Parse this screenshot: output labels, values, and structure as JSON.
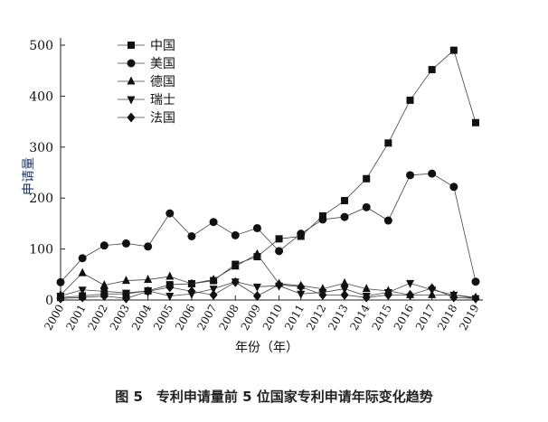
{
  "chart_data": {
    "type": "line",
    "caption": "图 5　专利申请量前 5 位国家专利申请年际变化趋势",
    "xlabel": "年份（年）",
    "ylabel": "申请量",
    "ylim": [
      0,
      500
    ],
    "yticks": [
      0,
      100,
      200,
      300,
      400,
      500
    ],
    "categories": [
      "2000",
      "2001",
      "2002",
      "2003",
      "2004",
      "2005",
      "2006",
      "2007",
      "2008",
      "2009",
      "2010",
      "2011",
      "2012",
      "2013",
      "2014",
      "2015",
      "2016",
      "2017",
      "2018",
      "2019"
    ],
    "legend_position": "top-left",
    "series": [
      {
        "name": "中国",
        "marker": "square",
        "values": [
          5,
          8,
          12,
          12,
          18,
          30,
          32,
          38,
          70,
          85,
          120,
          125,
          165,
          195,
          238,
          308,
          392,
          452,
          490,
          348
        ]
      },
      {
        "name": "美国",
        "marker": "circle",
        "values": [
          35,
          82,
          107,
          111,
          105,
          170,
          125,
          153,
          127,
          141,
          96,
          130,
          158,
          163,
          182,
          156,
          245,
          248,
          222,
          36
        ]
      },
      {
        "name": "德国",
        "marker": "triangle-up",
        "values": [
          10,
          53,
          29,
          38,
          40,
          46,
          32,
          40,
          66,
          90,
          32,
          28,
          22,
          33,
          22,
          18,
          10,
          10,
          10,
          5
        ]
      },
      {
        "name": "瑞士",
        "marker": "triangle-down",
        "values": [
          8,
          20,
          17,
          14,
          18,
          8,
          12,
          22,
          36,
          26,
          28,
          12,
          15,
          22,
          8,
          15,
          33,
          20,
          10,
          3
        ]
      },
      {
        "name": "法国",
        "marker": "diamond",
        "values": [
          3,
          5,
          8,
          3,
          17,
          25,
          17,
          10,
          35,
          8,
          30,
          26,
          10,
          10,
          5,
          10,
          10,
          23,
          5,
          3
        ]
      }
    ]
  }
}
